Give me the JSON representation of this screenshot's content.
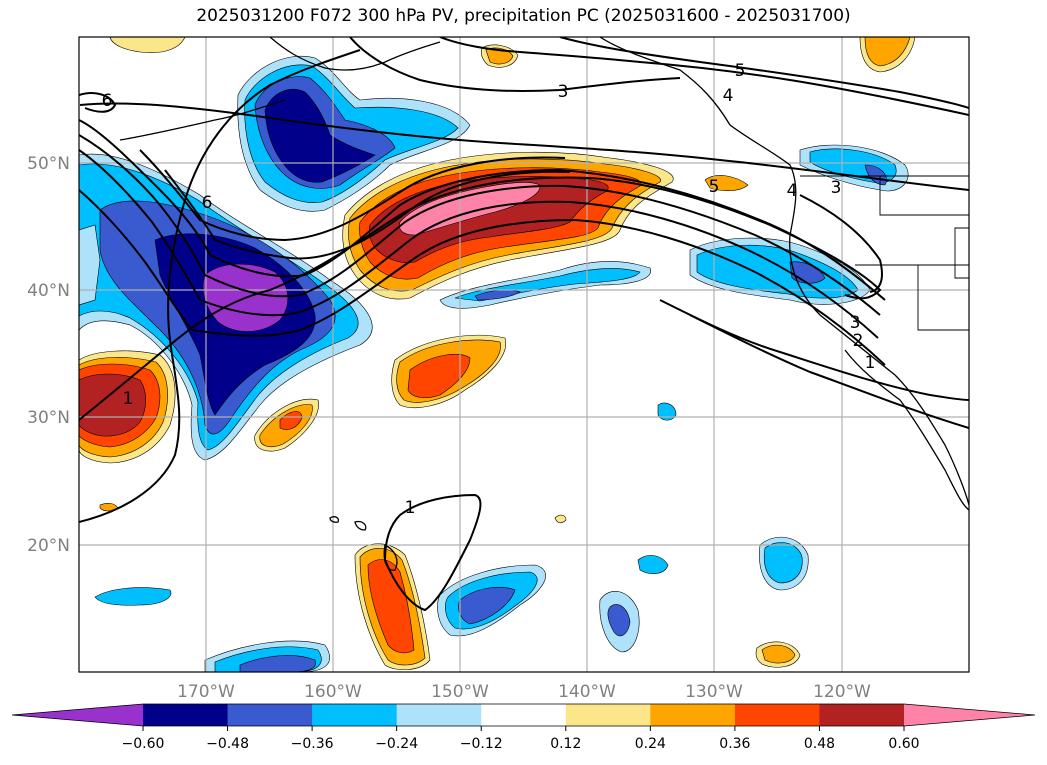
{
  "title": "2025031200 F072 300 hPa PV, precipitation PC (2025031600 - 2025031700)",
  "map": {
    "projection": "PlateCarree",
    "extent": {
      "lon_min": -180,
      "lon_max": -110,
      "lat_min": 10,
      "lat_max": 60
    },
    "gridlines": true,
    "lat_ticks": [
      {
        "value": 50,
        "label": "50°N"
      },
      {
        "value": 40,
        "label": "40°N"
      },
      {
        "value": 30,
        "label": "30°N"
      },
      {
        "value": 20,
        "label": "20°N"
      }
    ],
    "lon_ticks": [
      {
        "value": -170,
        "label": "170°W"
      },
      {
        "value": -160,
        "label": "160°W"
      },
      {
        "value": -150,
        "label": "150°W"
      },
      {
        "value": -140,
        "label": "140°W"
      },
      {
        "value": -130,
        "label": "130°W"
      },
      {
        "value": -120,
        "label": "120°W"
      }
    ]
  },
  "colorbar": {
    "orientation": "horizontal",
    "extend": "both",
    "levels": [
      -0.6,
      -0.48,
      -0.36,
      -0.24,
      -0.12,
      0.12,
      0.24,
      0.36,
      0.48,
      0.6
    ],
    "tick_labels": [
      "−0.60",
      "−0.48",
      "−0.36",
      "−0.24",
      "−0.12",
      "0.12",
      "0.24",
      "0.36",
      "0.48",
      "0.60"
    ],
    "colors": [
      "#9932cc",
      "#00008b",
      "#3a5bcf",
      "#00bfff",
      "#aee1fa",
      "#ffffff",
      "#fbe68a",
      "#ffa500",
      "#ff4500",
      "#b22222",
      "#ff83a8"
    ]
  },
  "pv_contour_labels": [
    "1",
    "1",
    "1",
    "2",
    "3",
    "3",
    "3",
    "4",
    "4",
    "5",
    "5",
    "6",
    "6"
  ]
}
